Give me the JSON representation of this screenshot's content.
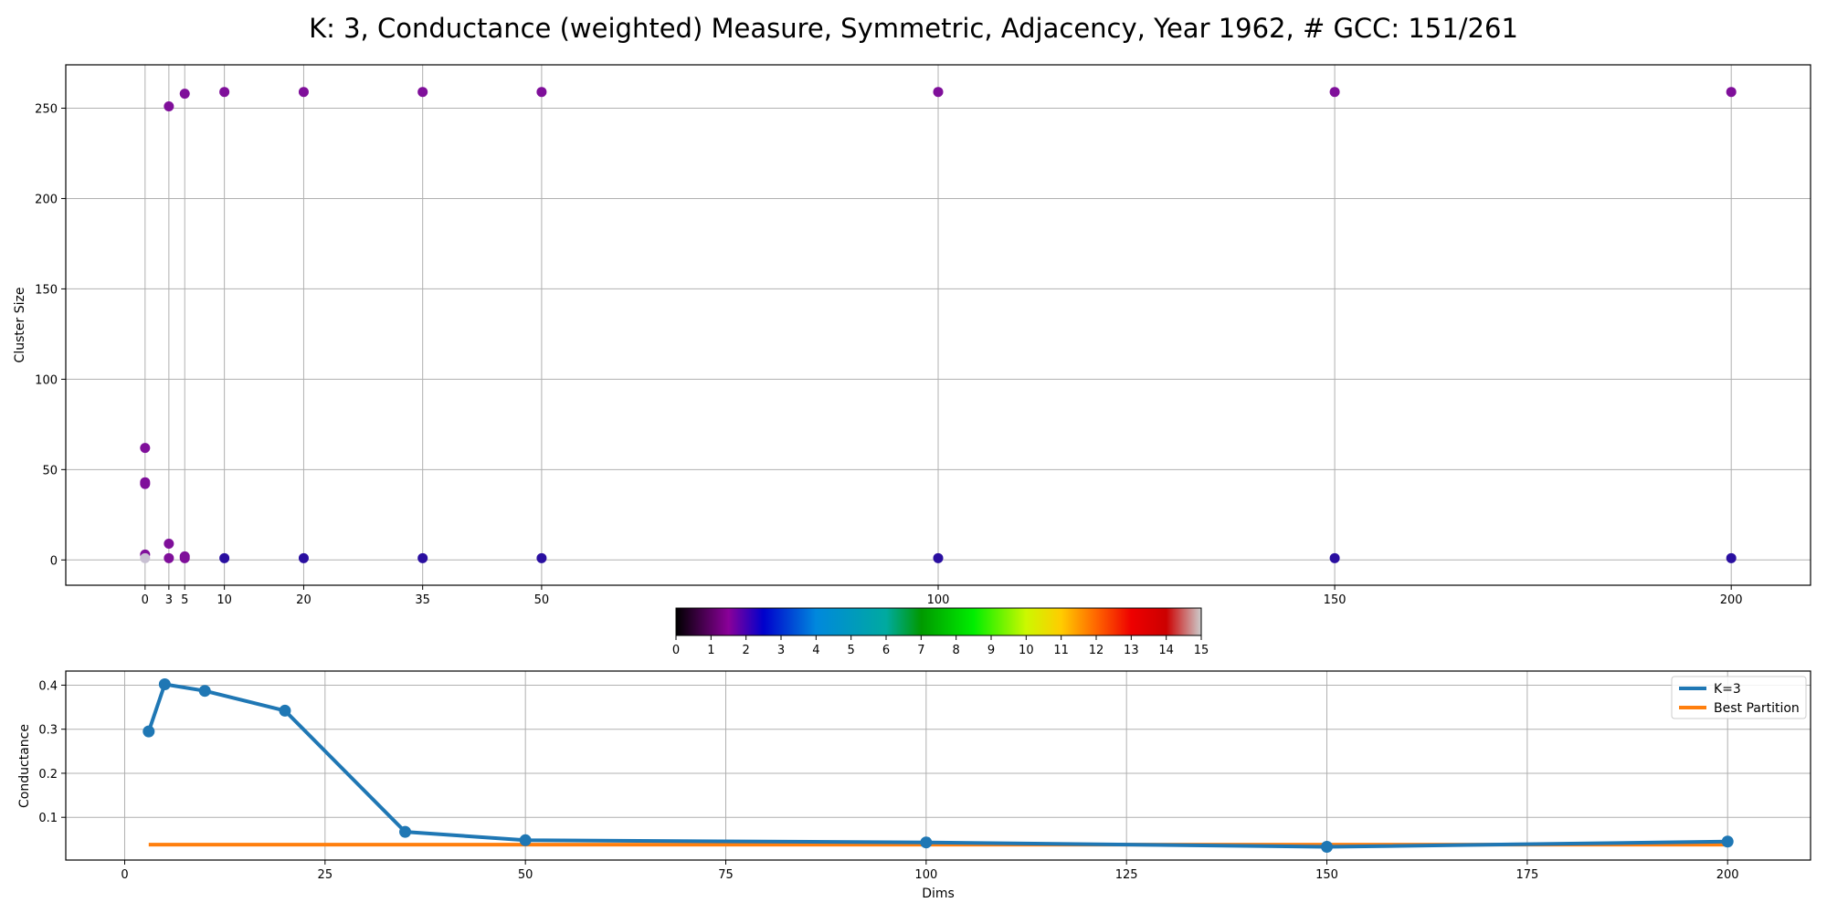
{
  "title": "K: 3, Conductance (weighted) Measure, Symmetric, Adjacency, Year 1962, # GCC: 151/261",
  "chart_data": [
    {
      "type": "scatter",
      "ylabel": "Cluster Size",
      "xlabel": "",
      "x_ticks": [
        0,
        3,
        5,
        10,
        20,
        35,
        50,
        100,
        150,
        200
      ],
      "y_ticks": [
        0,
        50,
        100,
        150,
        200,
        250
      ],
      "xlim": [
        -10,
        210
      ],
      "ylim": [
        -14,
        274
      ],
      "grid": true,
      "grid_lines_x": [
        0,
        3,
        5,
        10,
        20,
        35,
        50,
        100,
        150,
        200
      ],
      "points": [
        {
          "x": 0,
          "y": 62,
          "color": "#7f0f9a"
        },
        {
          "x": 0,
          "y": 43,
          "color": "#7f0f9a"
        },
        {
          "x": 0,
          "y": 42,
          "color": "#7f0f9a"
        },
        {
          "x": 0,
          "y": 3,
          "color": "#7f0f9a"
        },
        {
          "x": 0,
          "y": 1,
          "color": "#c8c0d2"
        },
        {
          "x": 3,
          "y": 251,
          "color": "#7f0f9a"
        },
        {
          "x": 3,
          "y": 9,
          "color": "#7f0f9a"
        },
        {
          "x": 3,
          "y": 1,
          "color": "#7f0f9a"
        },
        {
          "x": 5,
          "y": 258,
          "color": "#7f0f9a"
        },
        {
          "x": 5,
          "y": 2,
          "color": "#7f0f9a"
        },
        {
          "x": 5,
          "y": 1,
          "color": "#7f0f9a"
        },
        {
          "x": 10,
          "y": 259,
          "color": "#7f0f9a"
        },
        {
          "x": 10,
          "y": 1,
          "color": "#2a0fa0"
        },
        {
          "x": 20,
          "y": 259,
          "color": "#7f0f9a"
        },
        {
          "x": 20,
          "y": 1,
          "color": "#2a0fa0"
        },
        {
          "x": 35,
          "y": 259,
          "color": "#7f0f9a"
        },
        {
          "x": 35,
          "y": 1,
          "color": "#2a0fa0"
        },
        {
          "x": 50,
          "y": 259,
          "color": "#7f0f9a"
        },
        {
          "x": 50,
          "y": 1,
          "color": "#2a0fa0"
        },
        {
          "x": 100,
          "y": 259,
          "color": "#7f0f9a"
        },
        {
          "x": 100,
          "y": 1,
          "color": "#2a0fa0"
        },
        {
          "x": 150,
          "y": 259,
          "color": "#7f0f9a"
        },
        {
          "x": 150,
          "y": 1,
          "color": "#2a0fa0"
        },
        {
          "x": 200,
          "y": 259,
          "color": "#7f0f9a"
        },
        {
          "x": 200,
          "y": 1,
          "color": "#2a0fa0"
        }
      ]
    },
    {
      "type": "colorbar",
      "range": [
        0,
        15
      ],
      "ticks": [
        0,
        1,
        2,
        3,
        4,
        5,
        6,
        7,
        8,
        9,
        10,
        11,
        12,
        13,
        14,
        15
      ],
      "colormap": "nipy_spectral",
      "stops": [
        {
          "v": 0,
          "color": "#000000"
        },
        {
          "v": 1.5,
          "color": "#8a0099"
        },
        {
          "v": 2.5,
          "color": "#0000cc"
        },
        {
          "v": 4,
          "color": "#0088dd"
        },
        {
          "v": 6,
          "color": "#00aaa0"
        },
        {
          "v": 7,
          "color": "#009900"
        },
        {
          "v": 8.5,
          "color": "#00ee00"
        },
        {
          "v": 10,
          "color": "#ccf800"
        },
        {
          "v": 11,
          "color": "#ffcc00"
        },
        {
          "v": 12,
          "color": "#ff6600"
        },
        {
          "v": 13,
          "color": "#ee0000"
        },
        {
          "v": 14,
          "color": "#cc0000"
        },
        {
          "v": 15,
          "color": "#cccccc"
        }
      ]
    },
    {
      "type": "line",
      "xlabel": "Dims",
      "ylabel": "Conductance",
      "x_ticks": [
        0,
        25,
        50,
        75,
        100,
        125,
        150,
        175,
        200
      ],
      "y_ticks": [
        0.1,
        0.2,
        0.3,
        0.4
      ],
      "y_tick_labels": [
        "0.1",
        "0.2",
        "0.3",
        "0.4"
      ],
      "xlim": [
        -7.35,
        210.35
      ],
      "ylim": [
        0.003,
        0.432
      ],
      "grid": true,
      "legend_position": "top-right",
      "series": [
        {
          "name": "K=3",
          "color": "#1f77b4",
          "markers": true,
          "x": [
            3,
            5,
            10,
            20,
            35,
            50,
            100,
            150,
            200
          ],
          "y": [
            0.295,
            0.402,
            0.387,
            0.342,
            0.067,
            0.048,
            0.043,
            0.033,
            0.045
          ]
        },
        {
          "name": "Best Partition",
          "color": "#ff7f0e",
          "markers": false,
          "x": [
            3,
            200
          ],
          "y": [
            0.038,
            0.038
          ]
        }
      ]
    }
  ]
}
